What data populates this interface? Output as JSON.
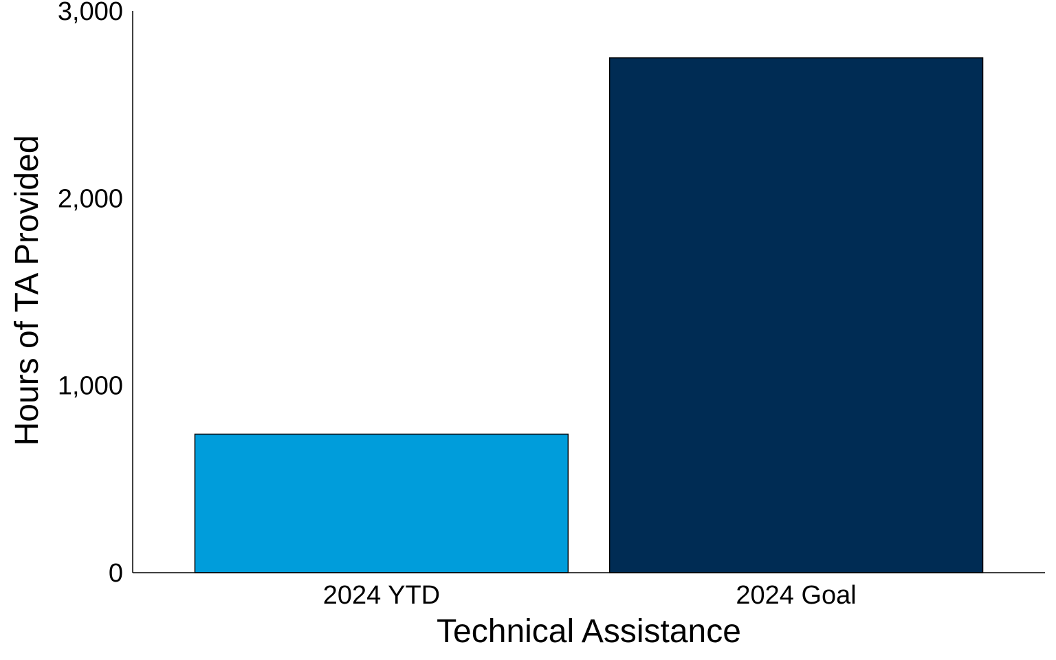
{
  "chart_data": {
    "type": "bar",
    "title": "",
    "xlabel": "Technical Assistance",
    "ylabel": "Hours of TA Provided",
    "categories": [
      "2024 YTD",
      "2024 Goal"
    ],
    "values": [
      740,
      2750
    ],
    "colors": [
      "#009ddb",
      "#002c54"
    ],
    "ylim": [
      0,
      3000
    ],
    "yticks": [
      0,
      1000,
      2000,
      3000
    ],
    "ytick_labels": [
      "0",
      "1,000",
      "2,000",
      "3,000"
    ],
    "grid": false,
    "legend": "none"
  }
}
